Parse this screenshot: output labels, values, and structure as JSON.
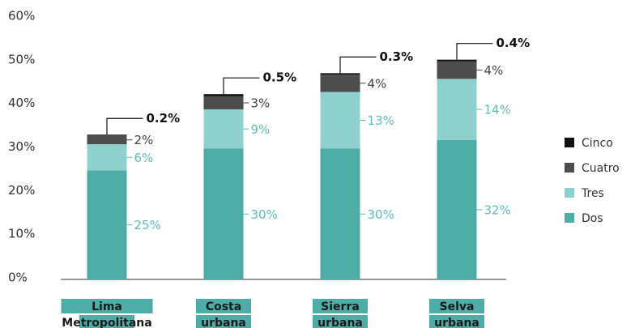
{
  "chart_data": {
    "type": "stacked_bar",
    "categories": [
      [
        "Lima",
        "Metropolitana"
      ],
      [
        "Costa",
        "urbana"
      ],
      [
        "Sierra",
        "urbana"
      ],
      [
        "Selva",
        "urbana"
      ]
    ],
    "series": [
      {
        "name": "Dos",
        "color": "#4fada8",
        "label_color": "#5bbdb5",
        "values": [
          25,
          30,
          30,
          32
        ],
        "value_labels": [
          "25%",
          "30%",
          "30%",
          "32%"
        ]
      },
      {
        "name": "Tres",
        "color": "#8ed0cb",
        "label_color": "#5bbdb5",
        "values": [
          6,
          9,
          13,
          14
        ],
        "value_labels": [
          "6%",
          "9%",
          "13%",
          "14%"
        ]
      },
      {
        "name": "Cuatro",
        "color": "#4d4d4d",
        "label_color": "#444444",
        "values": [
          2,
          3,
          4,
          4
        ],
        "value_labels": [
          "2%",
          "3%",
          "4%",
          "4%"
        ]
      },
      {
        "name": "Cinco",
        "color": "#111111",
        "label_color": "#111111",
        "values": [
          0.2,
          0.5,
          0.3,
          0.4
        ],
        "value_labels": [
          "0.2%",
          "0.5%",
          "0.3%",
          "0.4%"
        ]
      }
    ],
    "ylim": [
      0,
      60
    ],
    "yticks": [
      {
        "value": 0,
        "label": "0%"
      },
      {
        "value": 10,
        "label": "10%"
      },
      {
        "value": 20,
        "label": "20%"
      },
      {
        "value": 30,
        "label": "30%"
      },
      {
        "value": 40,
        "label": "40%"
      },
      {
        "value": 50,
        "label": "50%"
      },
      {
        "value": 60,
        "label": "60%"
      }
    ],
    "legend": "right"
  }
}
